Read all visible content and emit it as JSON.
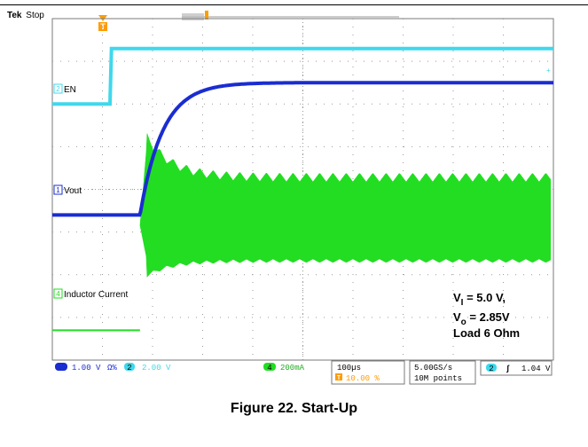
{
  "header": {
    "brand": "Tek",
    "status": "Stop"
  },
  "channels": [
    {
      "id": "2",
      "label": "EN",
      "color": "#3fd8ec"
    },
    {
      "id": "1",
      "label": "Vout",
      "color": "#1a2dd1"
    },
    {
      "id": "4",
      "label": "Inductor Current",
      "color": "#22dd22"
    }
  ],
  "annotation": {
    "line1_main": "V",
    "line1_sub": "I",
    "line1_rest": " = 5.0 V,",
    "line2_main": "V",
    "line2_sub": "o",
    "line2_rest": " = 2.85V",
    "line3": "Load 6 Ohm"
  },
  "readouts": {
    "ch1_scale": "1.00 V",
    "ch1_coupling": "Ω%",
    "ch2_id": "2",
    "ch2_scale": "2.00 V",
    "ch4_id": "4",
    "ch4_scale": "200mA",
    "timebase": "100µs",
    "trigger_pos": "10.00 %",
    "sample_rate": "5.00GS/s",
    "record_length": "10M points",
    "trig_ch": "2",
    "trig_slope": "ʃ",
    "trig_level": "1.04 V"
  },
  "chart_data": {
    "type": "line",
    "title": "",
    "xlabel": "",
    "ylabel": "",
    "grid": true,
    "divisions": {
      "x": 10,
      "y": 8
    },
    "x_units": "µs",
    "x_per_div": 100,
    "x_range": [
      0,
      1000
    ],
    "series": [
      {
        "name": "EN",
        "channel": "2",
        "color": "#3fd8ec",
        "x": [
          0,
          115,
          118,
          1000
        ],
        "y_div": [
          6.0,
          6.0,
          7.3,
          7.3
        ]
      },
      {
        "name": "Vout",
        "channel": "1",
        "color": "#1a2dd1",
        "x": [
          0,
          175,
          200,
          225,
          250,
          280,
          320,
          1000
        ],
        "y_div": [
          3.4,
          3.4,
          4.6,
          5.5,
          6.05,
          6.4,
          6.5,
          6.5
        ]
      },
      {
        "name": "Inductor Current",
        "channel": "4",
        "color": "#22dd22",
        "x": [
          0,
          175,
          200,
          1000
        ],
        "y_div": [
          0.7,
          0.7,
          5.2,
          3.8
        ]
      }
    ]
  },
  "caption": "Figure 22. Start-Up"
}
